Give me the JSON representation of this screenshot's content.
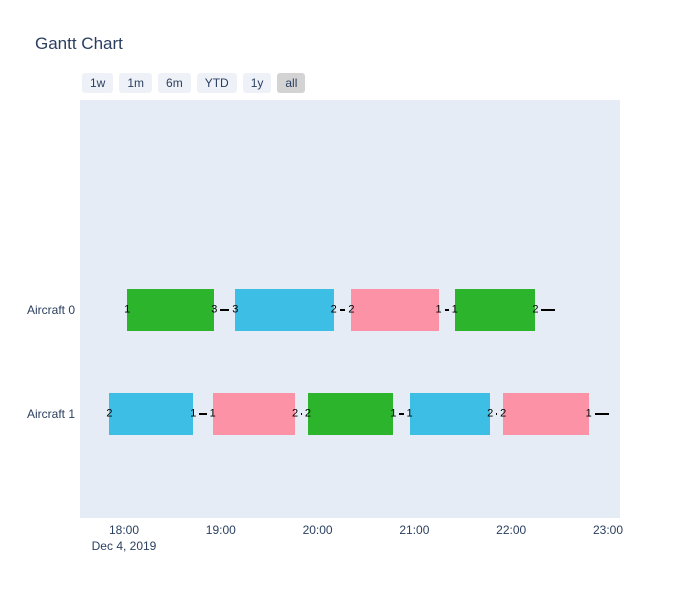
{
  "title": "Gantt Chart",
  "range_selector": {
    "buttons": [
      {
        "label": "1w",
        "active": false
      },
      {
        "label": "1m",
        "active": false
      },
      {
        "label": "6m",
        "active": false
      },
      {
        "label": "YTD",
        "active": false
      },
      {
        "label": "1y",
        "active": false
      },
      {
        "label": "all",
        "active": true
      }
    ]
  },
  "colors": {
    "green": "#2cb42c",
    "blue": "#3dbee4",
    "pink": "#fb92a5",
    "plot_background": "#e5ecf6",
    "axis_text": "#2a3f5f",
    "connector": "#000000"
  },
  "chart_data": {
    "type": "gantt",
    "title": "Gantt Chart",
    "x_axis": {
      "tick_labels": [
        "18:00",
        "19:00",
        "20:00",
        "21:00",
        "22:00",
        "23:00"
      ],
      "date_label": "Dec 4, 2019",
      "range": [
        "17:33",
        "23:07"
      ]
    },
    "rows": [
      {
        "label": "Aircraft 0",
        "tasks": [
          {
            "start": "18:02",
            "end": "18:56",
            "color": "green",
            "start_label": "1",
            "end_label": "3"
          },
          {
            "start": "19:09",
            "end": "20:10",
            "color": "blue",
            "start_label": "3",
            "end_label": "2"
          },
          {
            "start": "20:21",
            "end": "21:15",
            "color": "pink",
            "start_label": "2",
            "end_label": "1"
          },
          {
            "start": "21:25",
            "end": "22:15",
            "color": "green",
            "start_label": "1",
            "end_label": "2"
          }
        ],
        "trailing_connector": true
      },
      {
        "label": "Aircraft 1",
        "tasks": [
          {
            "start": "17:51",
            "end": "18:43",
            "color": "blue",
            "start_label": "2",
            "end_label": "1"
          },
          {
            "start": "18:55",
            "end": "19:46",
            "color": "pink",
            "start_label": "1",
            "end_label": "2"
          },
          {
            "start": "19:54",
            "end": "20:47",
            "color": "green",
            "start_label": "2",
            "end_label": "1"
          },
          {
            "start": "20:57",
            "end": "21:47",
            "color": "blue",
            "start_label": "1",
            "end_label": "2"
          },
          {
            "start": "21:55",
            "end": "22:48",
            "color": "pink",
            "start_label": "2",
            "end_label": "1"
          }
        ],
        "trailing_connector": true
      }
    ]
  }
}
